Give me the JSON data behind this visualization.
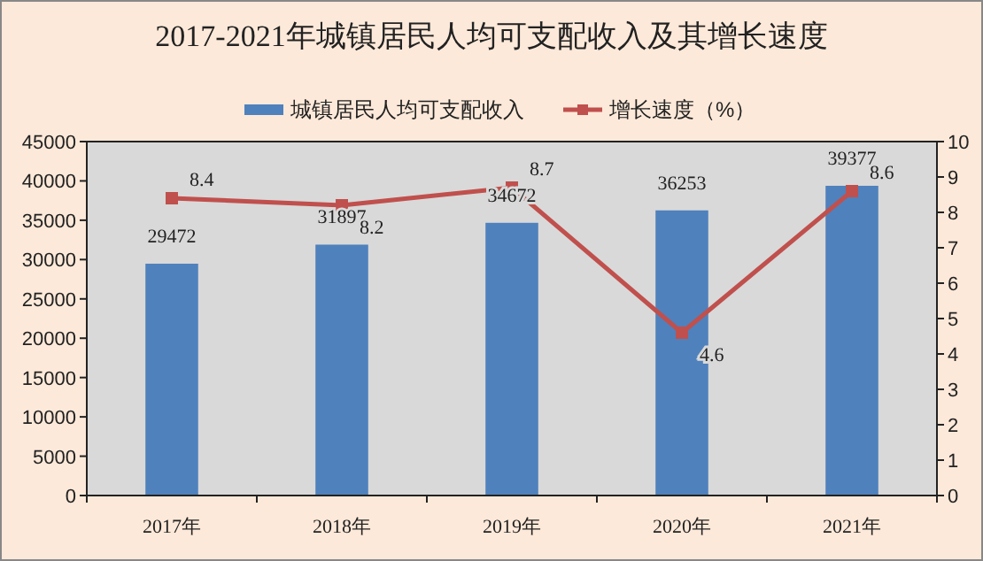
{
  "chart_data": {
    "type": "bar",
    "title": "2017-2021年城镇居民人均可支配收入及其增长速度",
    "categories": [
      "2017年",
      "2018年",
      "2019年",
      "2020年",
      "2021年"
    ],
    "series": [
      {
        "name": "城镇居民人均可支配收入",
        "color": "#4f81bd",
        "values": [
          29472,
          31897,
          34672,
          36253,
          39377
        ]
      },
      {
        "name": "增长速度（%）",
        "type": "line",
        "axis": "y2",
        "color": "#c0504d",
        "values": [
          8.4,
          8.2,
          8.7,
          4.6,
          8.6
        ]
      }
    ],
    "ylim": [
      0,
      45000
    ],
    "yticks": [
      0,
      5000,
      10000,
      15000,
      20000,
      25000,
      30000,
      35000,
      40000,
      45000
    ],
    "y2lim": [
      0,
      10
    ],
    "y2ticks": [
      0,
      1,
      2,
      3,
      4,
      5,
      6,
      7,
      8,
      9,
      10
    ],
    "data_labels": true,
    "legend": "top",
    "grid": false,
    "marker": "square",
    "line_style": "solid"
  }
}
